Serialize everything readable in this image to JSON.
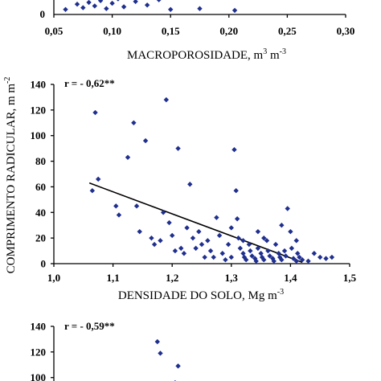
{
  "shared": {
    "ylabel": "COMPRIMENTO RADICULAR, m m",
    "ylabel_sup": "-2"
  },
  "chart_data": [
    {
      "type": "scatter",
      "xlabel": "MACROPOROSIDADE, m",
      "xlabel_sup1": "3",
      "xlabel_mid": " m",
      "xlabel_sup2": "-3",
      "xlim": [
        0.05,
        0.3
      ],
      "x_ticks": [
        "0,05",
        "0,10",
        "0,15",
        "0,20",
        "0,25",
        "0,30"
      ],
      "y_ticks": [
        "0"
      ],
      "series_color": "#1f2f8f",
      "points": [
        [
          0.06,
          2
        ],
        [
          0.07,
          8
        ],
        [
          0.075,
          4
        ],
        [
          0.08,
          10
        ],
        [
          0.085,
          6
        ],
        [
          0.09,
          12
        ],
        [
          0.095,
          3
        ],
        [
          0.1,
          9
        ],
        [
          0.105,
          14
        ],
        [
          0.11,
          5
        ],
        [
          0.12,
          11
        ],
        [
          0.13,
          7
        ],
        [
          0.14,
          13
        ],
        [
          0.15,
          2
        ],
        [
          0.175,
          3
        ],
        [
          0.205,
          1
        ]
      ]
    },
    {
      "type": "scatter",
      "annotation": "r = - 0,62**",
      "xlabel": "DENSIDADE DO SOLO, Mg m",
      "xlabel_sup": "-3",
      "xlim": [
        1.0,
        1.5
      ],
      "ylim": [
        0,
        140
      ],
      "x_ticks": [
        "1,0",
        "1,1",
        "1,2",
        "1,3",
        "1,4",
        "1,5"
      ],
      "y_ticks": [
        "0",
        "20",
        "40",
        "60",
        "80",
        "100",
        "120",
        "140"
      ],
      "series_color": "#1f2f8f",
      "trendline": {
        "x1": 1.06,
        "y1": 63,
        "x2": 1.42,
        "y2": 1
      },
      "points": [
        [
          1.065,
          57
        ],
        [
          1.07,
          118
        ],
        [
          1.075,
          66
        ],
        [
          1.105,
          45
        ],
        [
          1.11,
          38
        ],
        [
          1.125,
          83
        ],
        [
          1.135,
          110
        ],
        [
          1.14,
          45
        ],
        [
          1.145,
          25
        ],
        [
          1.155,
          96
        ],
        [
          1.165,
          20
        ],
        [
          1.17,
          15
        ],
        [
          1.18,
          18
        ],
        [
          1.185,
          40
        ],
        [
          1.19,
          128
        ],
        [
          1.195,
          32
        ],
        [
          1.2,
          22
        ],
        [
          1.205,
          10
        ],
        [
          1.21,
          90
        ],
        [
          1.215,
          12
        ],
        [
          1.22,
          8
        ],
        [
          1.225,
          28
        ],
        [
          1.23,
          62
        ],
        [
          1.235,
          20
        ],
        [
          1.24,
          12
        ],
        [
          1.245,
          25
        ],
        [
          1.25,
          15
        ],
        [
          1.255,
          5
        ],
        [
          1.26,
          18
        ],
        [
          1.265,
          10
        ],
        [
          1.27,
          5
        ],
        [
          1.275,
          36
        ],
        [
          1.28,
          22
        ],
        [
          1.285,
          8
        ],
        [
          1.29,
          3
        ],
        [
          1.295,
          15
        ],
        [
          1.3,
          28
        ],
        [
          1.305,
          89
        ],
        [
          1.308,
          57
        ],
        [
          1.31,
          35
        ],
        [
          1.312,
          20
        ],
        [
          1.315,
          12
        ],
        [
          1.32,
          8
        ],
        [
          1.322,
          5
        ],
        [
          1.325,
          3
        ],
        [
          1.33,
          15
        ],
        [
          1.332,
          10
        ],
        [
          1.335,
          6
        ],
        [
          1.34,
          4
        ],
        [
          1.342,
          2
        ],
        [
          1.345,
          12
        ],
        [
          1.35,
          8
        ],
        [
          1.352,
          5
        ],
        [
          1.355,
          3
        ],
        [
          1.36,
          18
        ],
        [
          1.362,
          10
        ],
        [
          1.365,
          6
        ],
        [
          1.37,
          4
        ],
        [
          1.372,
          2
        ],
        [
          1.375,
          15
        ],
        [
          1.38,
          8
        ],
        [
          1.382,
          5
        ],
        [
          1.385,
          3
        ],
        [
          1.39,
          10
        ],
        [
          1.392,
          6
        ],
        [
          1.395,
          43
        ],
        [
          1.4,
          25
        ],
        [
          1.402,
          12
        ],
        [
          1.405,
          4
        ],
        [
          1.41,
          18
        ],
        [
          1.412,
          8
        ],
        [
          1.415,
          5
        ],
        [
          1.42,
          3
        ],
        [
          1.43,
          2
        ],
        [
          1.44,
          8
        ],
        [
          1.45,
          5
        ],
        [
          1.46,
          4
        ],
        [
          1.47,
          5
        ],
        [
          1.385,
          30
        ],
        [
          1.355,
          20
        ],
        [
          1.345,
          25
        ],
        [
          1.41,
          2
        ],
        [
          1.3,
          5
        ],
        [
          1.32,
          18
        ]
      ]
    },
    {
      "type": "scatter",
      "annotation": "r = - 0,59**",
      "ylim": [
        0,
        140
      ],
      "y_ticks": [
        "100",
        "120",
        "140"
      ],
      "series_color": "#1f2f8f",
      "points": [
        [
          1.175,
          128
        ],
        [
          1.18,
          119
        ],
        [
          1.21,
          109
        ],
        [
          1.205,
          96
        ],
        [
          1.195,
          94
        ]
      ]
    }
  ]
}
